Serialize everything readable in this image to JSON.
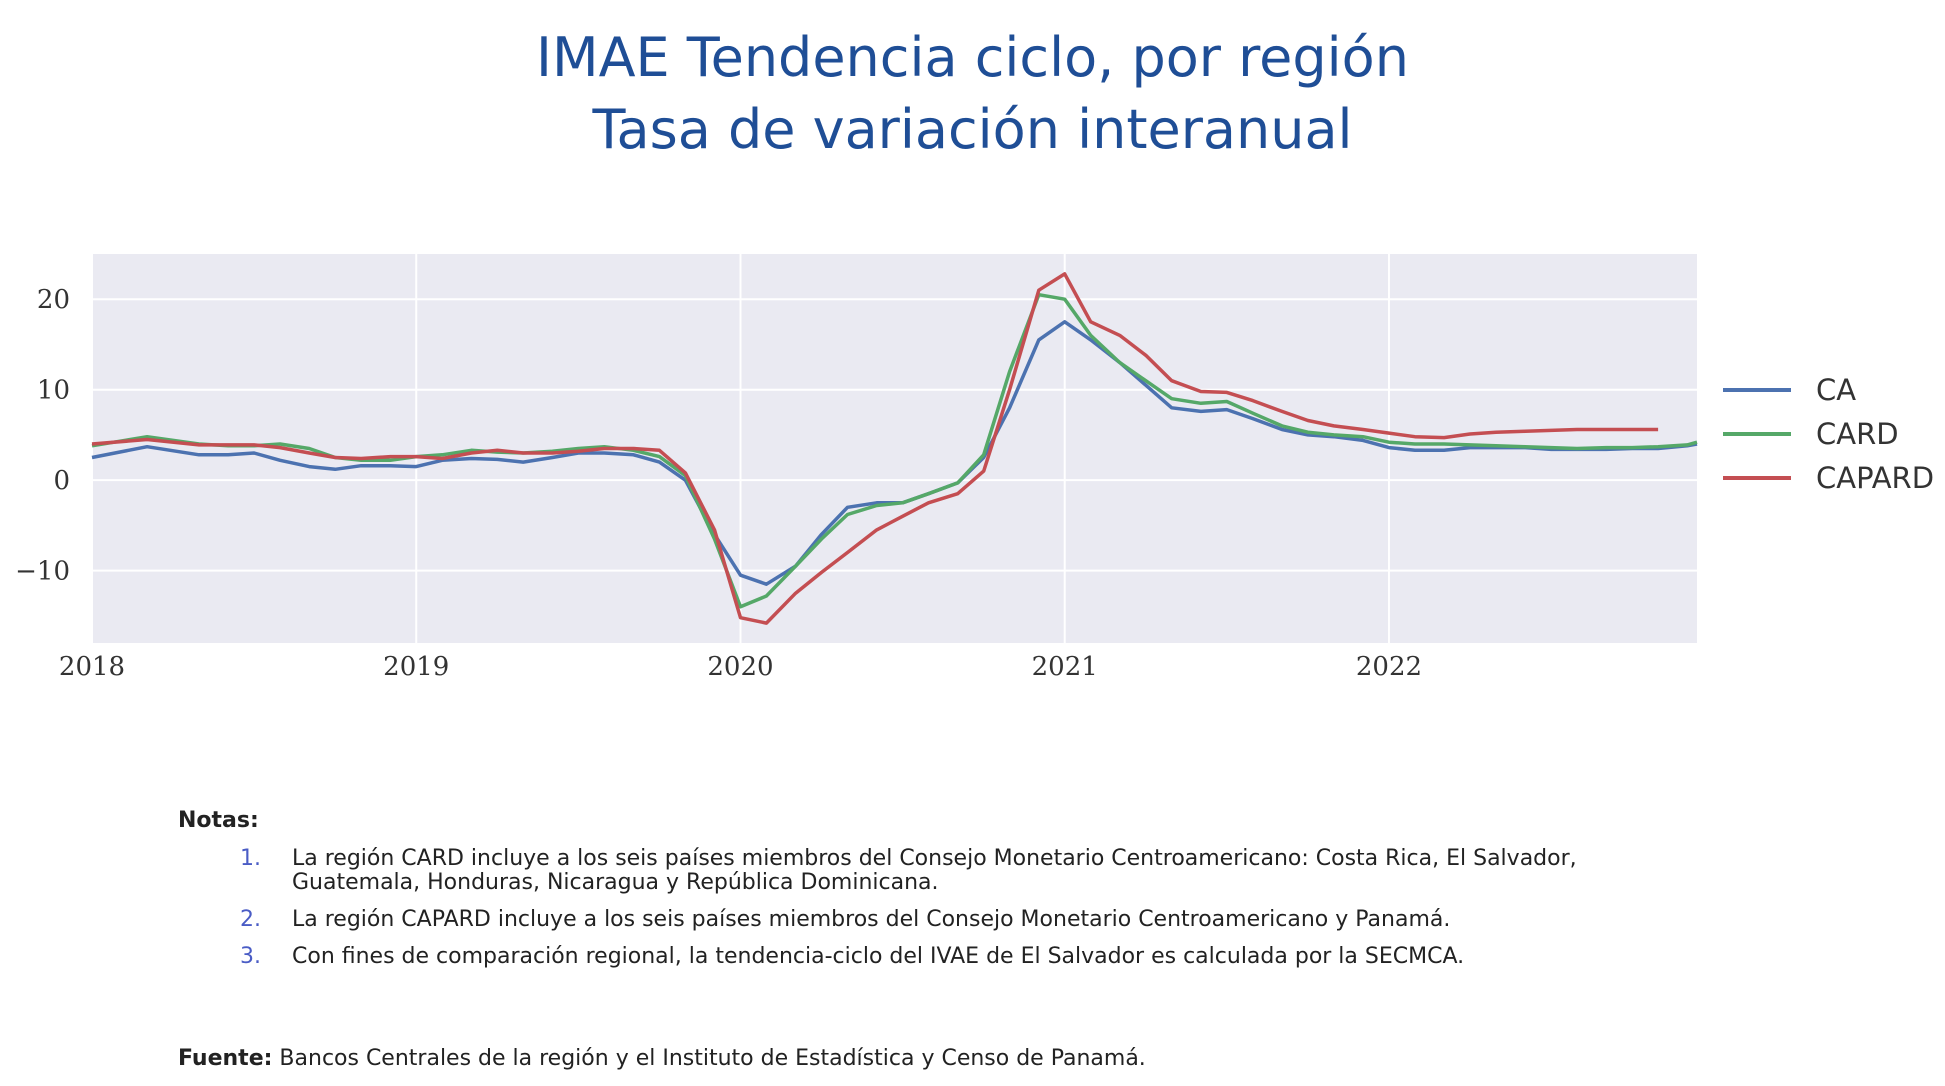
{
  "header": {
    "title": "IMAE Tendencia ciclo, por región",
    "subtitle": "Tasa de variación interanual"
  },
  "chart_data": {
    "type": "line",
    "title": "IMAE Tendencia ciclo, por región",
    "subtitle": "Tasa de variación interanual",
    "xlim": [
      2018.0,
      2022.95
    ],
    "ylim": [
      -18,
      25
    ],
    "x_ticks": [
      "2018",
      "2019",
      "2020",
      "2021",
      "2022"
    ],
    "y_ticks": [
      "20",
      "10",
      "0",
      "−10"
    ],
    "y_tick_values": [
      20,
      10,
      0,
      -10
    ],
    "x_tick_values": [
      2018,
      2019,
      2020,
      2021,
      2022
    ],
    "grid": true,
    "legend_position": "right",
    "series": [
      {
        "name": "CA",
        "color": "#4c72b0",
        "x": [
          2018.0,
          2018.17,
          2018.33,
          2018.42,
          2018.5,
          2018.58,
          2018.67,
          2018.75,
          2018.83,
          2018.92,
          2019.0,
          2019.08,
          2019.17,
          2019.25,
          2019.33,
          2019.42,
          2019.5,
          2019.58,
          2019.67,
          2019.75,
          2019.83,
          2019.92,
          2020.0,
          2020.08,
          2020.17,
          2020.25,
          2020.33,
          2020.42,
          2020.5,
          2020.58,
          2020.67,
          2020.75,
          2020.83,
          2020.92,
          2021.0,
          2021.08,
          2021.17,
          2021.25,
          2021.33,
          2021.42,
          2021.5,
          2021.58,
          2021.67,
          2021.75,
          2021.83,
          2021.92,
          2022.0,
          2022.08,
          2022.17,
          2022.25,
          2022.33,
          2022.42,
          2022.5,
          2022.58,
          2022.67,
          2022.75,
          2022.83,
          2022.92,
          2022.95
        ],
        "y": [
          2.5,
          3.7,
          2.8,
          2.8,
          3.0,
          2.2,
          1.5,
          1.2,
          1.6,
          1.6,
          1.5,
          2.2,
          2.4,
          2.3,
          2.0,
          2.5,
          3.0,
          3.0,
          2.8,
          2.0,
          0.0,
          -6.0,
          -10.5,
          -11.5,
          -9.5,
          -6.0,
          -3.0,
          -2.5,
          -2.5,
          -1.5,
          -0.3,
          2.5,
          8.0,
          15.5,
          17.5,
          15.5,
          13.0,
          10.5,
          8.0,
          7.6,
          7.8,
          6.8,
          5.6,
          5.0,
          4.8,
          4.4,
          3.6,
          3.3,
          3.3,
          3.6,
          3.6,
          3.6,
          3.4,
          3.4,
          3.4,
          3.5,
          3.5,
          3.8,
          4.0
        ],
        "label_source": "legend"
      },
      {
        "name": "CARD",
        "color": "#55a868",
        "x": [
          2018.0,
          2018.17,
          2018.33,
          2018.42,
          2018.5,
          2018.58,
          2018.67,
          2018.75,
          2018.83,
          2018.92,
          2019.0,
          2019.08,
          2019.17,
          2019.25,
          2019.33,
          2019.42,
          2019.5,
          2019.58,
          2019.67,
          2019.75,
          2019.83,
          2019.92,
          2020.0,
          2020.08,
          2020.17,
          2020.25,
          2020.33,
          2020.42,
          2020.5,
          2020.58,
          2020.67,
          2020.75,
          2020.83,
          2020.92,
          2021.0,
          2021.08,
          2021.17,
          2021.25,
          2021.33,
          2021.42,
          2021.5,
          2021.58,
          2021.67,
          2021.75,
          2021.83,
          2021.92,
          2022.0,
          2022.08,
          2022.17,
          2022.25,
          2022.33,
          2022.42,
          2022.5,
          2022.58,
          2022.67,
          2022.75,
          2022.83,
          2022.92,
          2022.95
        ],
        "y": [
          3.8,
          4.8,
          4.0,
          3.8,
          3.8,
          4.0,
          3.5,
          2.5,
          2.2,
          2.2,
          2.6,
          2.8,
          3.3,
          3.1,
          3.0,
          3.2,
          3.5,
          3.7,
          3.3,
          2.6,
          0.5,
          -6.5,
          -14.0,
          -12.8,
          -9.5,
          -6.5,
          -3.8,
          -2.8,
          -2.5,
          -1.5,
          -0.3,
          2.8,
          12.0,
          20.5,
          20.0,
          16.0,
          13.0,
          11.0,
          9.0,
          8.5,
          8.7,
          7.4,
          6.0,
          5.3,
          5.0,
          4.8,
          4.2,
          4.0,
          4.0,
          3.9,
          3.8,
          3.7,
          3.6,
          3.5,
          3.6,
          3.6,
          3.7,
          3.9,
          4.2
        ],
        "label_source": "legend"
      },
      {
        "name": "CAPARD",
        "color": "#c44e52",
        "x": [
          2018.0,
          2018.17,
          2018.33,
          2018.42,
          2018.5,
          2018.58,
          2018.67,
          2018.75,
          2018.83,
          2018.92,
          2019.0,
          2019.08,
          2019.17,
          2019.25,
          2019.33,
          2019.42,
          2019.5,
          2019.58,
          2019.67,
          2019.75,
          2019.83,
          2019.92,
          2020.0,
          2020.08,
          2020.17,
          2020.25,
          2020.33,
          2020.42,
          2020.5,
          2020.58,
          2020.67,
          2020.75,
          2020.83,
          2020.92,
          2021.0,
          2021.08,
          2021.17,
          2021.25,
          2021.33,
          2021.42,
          2021.5,
          2021.58,
          2021.67,
          2021.75,
          2021.83,
          2021.92,
          2022.0,
          2022.08,
          2022.17,
          2022.25,
          2022.33,
          2022.42,
          2022.5,
          2022.58,
          2022.67,
          2022.75,
          2022.83
        ],
        "y": [
          4.0,
          4.5,
          3.9,
          3.9,
          3.9,
          3.6,
          3.0,
          2.5,
          2.4,
          2.6,
          2.6,
          2.4,
          3.0,
          3.3,
          3.0,
          3.0,
          3.2,
          3.5,
          3.5,
          3.3,
          0.8,
          -5.5,
          -15.2,
          -15.8,
          -12.5,
          -10.2,
          -8.0,
          -5.5,
          -4.0,
          -2.5,
          -1.5,
          1.0,
          10.0,
          21.0,
          22.8,
          17.5,
          16.0,
          13.8,
          11.0,
          9.8,
          9.7,
          8.8,
          7.6,
          6.6,
          6.0,
          5.6,
          5.2,
          4.8,
          4.7,
          5.1,
          5.3,
          5.4,
          5.5,
          5.6,
          5.6,
          5.6,
          5.6
        ],
        "label_source": "legend"
      }
    ]
  },
  "notes": {
    "heading": "Notas:",
    "items": [
      {
        "num": "1.",
        "text": "La región CARD incluye a los seis países miembros del Consejo Monetario Centroamericano: Costa Rica, El Salvador, Guatemala, Honduras, Nicaragua y República Dominicana."
      },
      {
        "num": "2.",
        "text": "La región CAPARD incluye a los seis países miembros del Consejo Monetario Centroamericano y Panamá."
      },
      {
        "num": "3.",
        "text": "Con fines de comparación regional, la tendencia-ciclo del IVAE de El Salvador es calculada por la SECMCA."
      }
    ]
  },
  "source": {
    "label": "Fuente:",
    "text": "Bancos Centrales de la región y el Instituto de Estadística y Censo de Panamá."
  }
}
